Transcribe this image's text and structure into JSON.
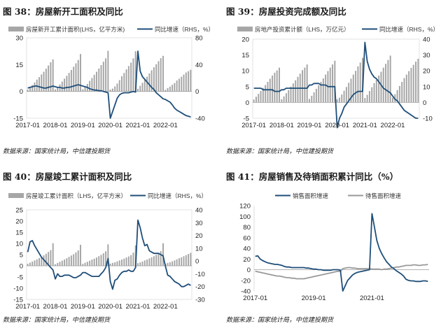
{
  "panels": [
    {
      "title": "图 38：房屋新开工面积及同比",
      "source": "数据来源：国家统计局，中信建投期货",
      "chart_data": {
        "type": "bar+line",
        "legend_placement": "top",
        "x_ticks": [
          "2017-01",
          "2018-01",
          "2019-01",
          "2020-01",
          "2021-01",
          "2022-01"
        ],
        "left_axis": {
          "min": -15,
          "max": 30,
          "ticks": [
            -15,
            0,
            15,
            30
          ]
        },
        "right_axis": {
          "min": -40,
          "max": 80,
          "ticks": [
            -40,
            0,
            40,
            80
          ]
        },
        "series": [
          {
            "name": "房屋新开工累计面积(LHS，亿平方米)",
            "kind": "bar",
            "axis": "left",
            "color": "#a6a6a6",
            "years": [
              [
                1.0,
                2.2,
                3.6,
                5.0,
                6.6,
                8.0,
                9.5,
                11.0,
                12.7,
                14.5,
                16.3,
                17.9
              ],
              [
                1.1,
                2.5,
                3.9,
                5.5,
                7.1,
                8.7,
                10.4,
                12.0,
                13.8,
                15.7,
                17.6,
                20.9
              ],
              [
                1.2,
                2.7,
                4.2,
                5.9,
                7.5,
                9.3,
                11.0,
                12.8,
                14.7,
                16.6,
                18.5,
                22.7
              ],
              [
                1.0,
                1.6,
                2.8,
                4.4,
                6.3,
                8.5,
                10.3,
                12.3,
                14.2,
                16.1,
                18.5,
                22.5
              ],
              [
                1.5,
                3.1,
                4.8,
                6.5,
                8.2,
                10.1,
                11.8,
                13.5,
                15.2,
                16.9,
                18.6,
                19.9
              ],
              [
                0.9,
                1.9,
                2.7,
                3.7,
                4.7,
                6.1,
                7.1,
                8.2,
                9.4,
                10.6,
                11.3,
                12.1
              ]
            ]
          },
          {
            "name": "同比增速（RHS，%）",
            "kind": "line",
            "axis": "right",
            "color": "#1f4e79",
            "values": [
              5,
              6,
              7,
              8,
              8,
              7,
              6,
              5,
              5,
              6,
              7,
              8,
              7,
              6,
              6,
              5,
              5,
              6,
              6,
              7,
              8,
              9,
              10,
              9,
              8,
              7,
              6,
              4,
              3,
              2,
              2,
              1,
              1,
              0,
              -1,
              -2,
              -40,
              -30,
              -20,
              -10,
              -5,
              -3,
              -2,
              -2,
              -2,
              -1,
              0,
              -1,
              60,
              30,
              22,
              18,
              14,
              10,
              6,
              3,
              -2,
              -5,
              -8,
              -11,
              -12,
              -14,
              -16,
              -20,
              -25,
              -28,
              -30,
              -32,
              -34,
              -36,
              -37,
              -38
            ]
          }
        ]
      }
    },
    {
      "title": "图 39：房屋投资完成额及同比",
      "source": "数据来源：国家统计局，中信建投期货",
      "chart_data": {
        "type": "bar+line",
        "legend_placement": "top",
        "x_ticks": [
          "2017-01",
          "2018-01",
          "2019-01",
          "2020-01",
          "2021-01",
          "2022-01"
        ],
        "left_axis": {
          "min": -5,
          "max": 20,
          "ticks": [
            -5,
            0,
            5,
            10,
            15,
            20
          ]
        },
        "right_axis": {
          "min": -10,
          "max": 40,
          "ticks": [
            -10,
            0,
            10,
            20,
            30,
            40
          ]
        },
        "series": [
          {
            "name": "房地产投资累计额（LHS，万亿元）",
            "kind": "bar",
            "axis": "left",
            "color": "#a6a6a6",
            "years": [
              [
                0.9,
                1.8,
                2.7,
                3.6,
                4.6,
                5.5,
                6.5,
                7.5,
                8.5,
                9.4,
                10.1,
                11.0
              ],
              [
                1.0,
                1.9,
                2.9,
                3.9,
                5.0,
                6.0,
                7.0,
                8.1,
                9.1,
                10.2,
                11.0,
                12.0
              ],
              [
                1.1,
                2.1,
                3.2,
                4.3,
                5.4,
                6.5,
                7.6,
                8.8,
                9.9,
                11.0,
                12.0,
                13.2
              ],
              [
                1.0,
                1.5,
                2.5,
                3.7,
                4.9,
                6.2,
                7.5,
                8.8,
                10.0,
                11.4,
                12.6,
                14.1
              ],
              [
                1.4,
                2.4,
                3.6,
                4.8,
                6.1,
                7.2,
                8.5,
                9.7,
                11.0,
                12.2,
                13.4,
                14.8
              ],
              [
                1.5,
                2.6,
                3.9,
                5.2,
                6.5,
                7.7,
                8.8,
                9.9,
                10.9,
                11.9,
                12.9,
                13.8
              ]
            ]
          },
          {
            "name": "同比增速（RHS，%）",
            "kind": "line",
            "axis": "right",
            "color": "#1f4e79",
            "values": [
              9,
              9,
              9,
              9,
              8,
              8,
              8,
              8,
              8,
              7,
              7,
              7,
              8,
              8,
              9,
              9,
              9,
              9,
              9,
              9,
              9,
              9,
              9,
              9,
              11,
              11,
              12,
              12,
              12,
              11,
              11,
              11,
              10,
              10,
              10,
              10,
              -16,
              -10,
              -7,
              -3,
              -1,
              1,
              3,
              5,
              6,
              7,
              7,
              7,
              38,
              26,
              21,
              18,
              16,
              15,
              13,
              11,
              9,
              8,
              7,
              6,
              4,
              2,
              1,
              -1,
              -3,
              -5,
              -6,
              -7,
              -8,
              -9,
              -10,
              -10
            ]
          }
        ]
      }
    },
    {
      "title": "图 40：房屋竣工累计面积及同比",
      "source": "数据来源：国家统计局，中信建投期货",
      "chart_data": {
        "type": "bar+line",
        "legend_placement": "top",
        "x_ticks": [
          "2017-01",
          "2018-01",
          "2019-01",
          "2020-01",
          "2021-01",
          "2022-01"
        ],
        "left_axis": {
          "min": -15,
          "max": 25,
          "ticks": [
            -15,
            -10,
            -5,
            0,
            5,
            10,
            15,
            20,
            25
          ]
        },
        "right_axis": {
          "min": -30,
          "max": 40,
          "ticks": [
            -30,
            -20,
            -10,
            0,
            10,
            20,
            30,
            40
          ]
        },
        "series": [
          {
            "name": "房屋竣工累计面积（LHS，亿平方米）",
            "kind": "bar",
            "axis": "left",
            "color": "#a6a6a6",
            "years": [
              [
                0.9,
                1.4,
                1.9,
                2.4,
                2.9,
                3.5,
                4.1,
                4.7,
                5.4,
                6.2,
                7.0,
                10.1
              ],
              [
                0.7,
                1.3,
                1.8,
                2.3,
                2.8,
                3.4,
                4.0,
                4.6,
                5.2,
                6.0,
                6.9,
                9.4
              ],
              [
                0.9,
                1.4,
                1.8,
                2.3,
                2.8,
                3.2,
                3.7,
                4.3,
                4.9,
                5.6,
                6.5,
                9.6
              ],
              [
                1.0,
                1.3,
                1.6,
                2.0,
                2.4,
                2.8,
                3.2,
                3.7,
                4.2,
                4.8,
                5.9,
                9.1
              ],
              [
                1.2,
                1.5,
                1.9,
                2.4,
                2.8,
                3.3,
                3.8,
                4.3,
                4.9,
                5.7,
                6.6,
                10.1
              ],
              [
                1.0,
                1.3,
                1.6,
                2.0,
                2.4,
                2.9,
                3.4,
                3.8,
                4.3,
                4.8,
                5.3,
                5.8
              ]
            ]
          },
          {
            "name": "同比增速（RHS，%）",
            "kind": "line",
            "axis": "right",
            "color": "#1f4e79",
            "values": [
              7,
              15,
              16,
              12,
              9,
              6,
              3,
              1,
              -1,
              -3,
              -5,
              -7,
              -14,
              -10,
              -12,
              -12,
              -11,
              -11,
              -11,
              -12,
              -13,
              -13,
              -12,
              -11,
              -9,
              -9,
              -10,
              -11,
              -12,
              -12,
              -12,
              -12,
              -10,
              -8,
              -5,
              2,
              -16,
              -22,
              -15,
              -14,
              -11,
              -9,
              -8,
              -8,
              -7,
              -8,
              -8,
              -5,
              32,
              26,
              18,
              12,
              13,
              8,
              7,
              6,
              6,
              6,
              5,
              4,
              -4,
              -11,
              -12,
              -14,
              -16,
              -17,
              -18,
              -20,
              -20,
              -19,
              -18,
              -19
            ]
          }
        ]
      }
    },
    {
      "title": "图 41：房屋销售及待销面积累计同比（%）",
      "source": "数据来源：国家统计局，中信建投期货",
      "chart_data": {
        "type": "line",
        "legend_placement": "top",
        "x_ticks": [
          "2017-01",
          "2019-01",
          "2021-01"
        ],
        "y_axis": {
          "min": -40,
          "max": 120,
          "ticks": [
            -40,
            -20,
            0,
            20,
            40,
            60,
            80,
            100,
            120
          ]
        },
        "series": [
          {
            "name": "销售面积增速",
            "color": "#1f4e79",
            "values": [
              25,
              26,
              20,
              17,
              15,
              13,
              12,
              11,
              10,
              10,
              9,
              8,
              6,
              5,
              5,
              4,
              4,
              4,
              4,
              4,
              4,
              3,
              3,
              2,
              1,
              1,
              0,
              0,
              -1,
              -1,
              -1,
              -1,
              0,
              0,
              0,
              -1,
              -40,
              -30,
              -20,
              -15,
              -10,
              -7,
              -5,
              -4,
              -3,
              -2,
              -1,
              0,
              105,
              80,
              55,
              40,
              30,
              22,
              15,
              10,
              5,
              2,
              -2,
              -5,
              -8,
              -12,
              -18,
              -20,
              -21,
              -21,
              -22,
              -22,
              -22,
              -21,
              -21,
              -22
            ]
          },
          {
            "name": "待售面积增速",
            "color": "#999999",
            "values": [
              -3,
              -4,
              -5,
              -6,
              -7,
              -8,
              -9,
              -10,
              -11,
              -12,
              -12,
              -13,
              -14,
              -15,
              -15,
              -16,
              -16,
              -17,
              -17,
              -17,
              -17,
              -16,
              -15,
              -14,
              -13,
              -12,
              -11,
              -10,
              -9,
              -8,
              -7,
              -6,
              -5,
              -4,
              -3,
              -3,
              2,
              3,
              4,
              4,
              3,
              3,
              2,
              2,
              2,
              2,
              2,
              2,
              1,
              1,
              1,
              1,
              0,
              1,
              1,
              2,
              3,
              4,
              5,
              5,
              6,
              7,
              8,
              8,
              8,
              9,
              9,
              8,
              8,
              9,
              9,
              10
            ]
          }
        ]
      }
    }
  ]
}
